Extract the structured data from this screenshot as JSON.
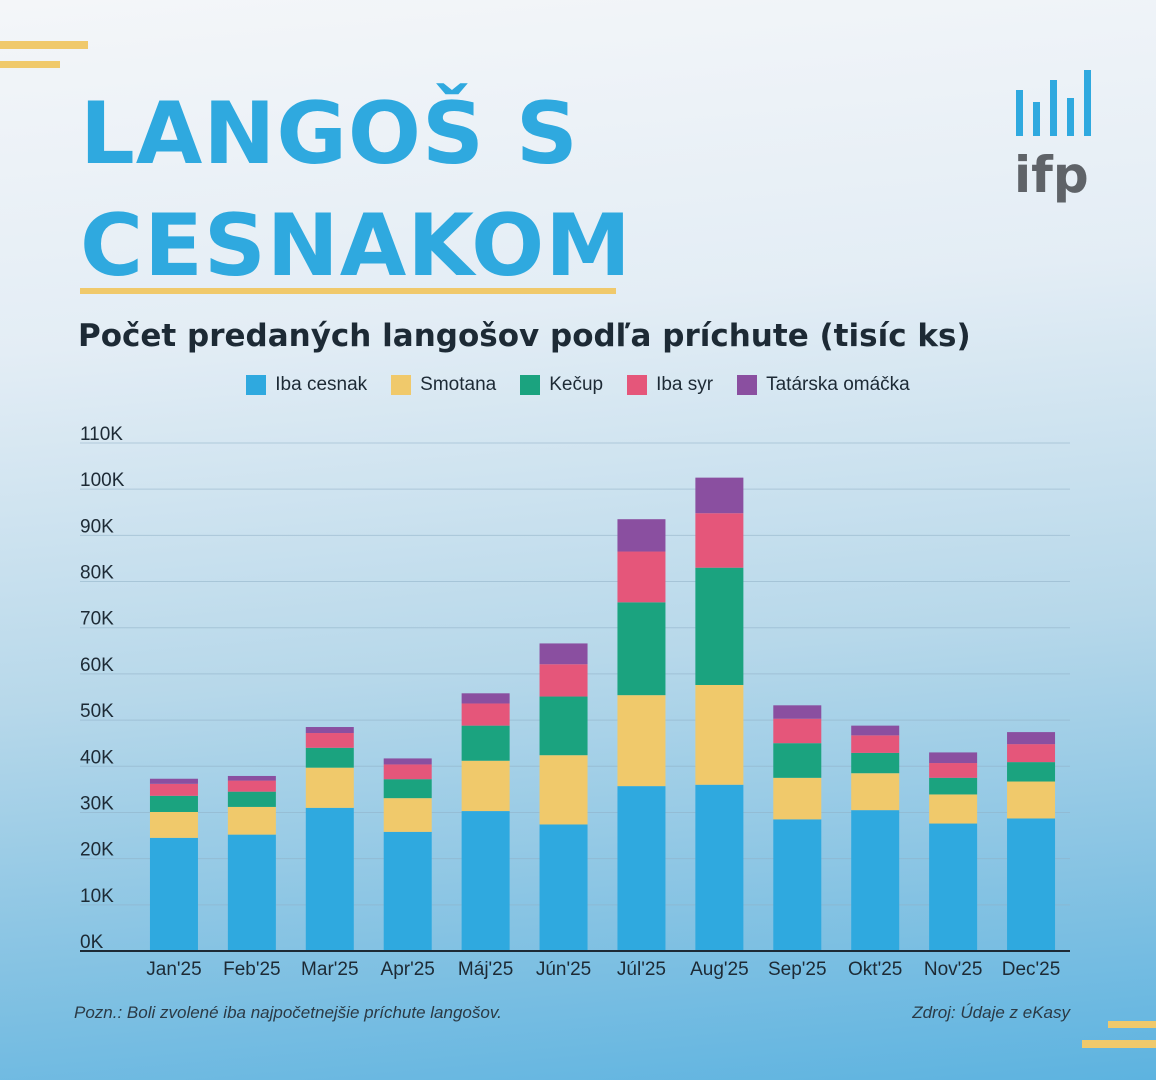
{
  "header": {
    "title_line1": "LANGOŠ S",
    "title_line2": "CESNAKOM",
    "logo_text": "ifp"
  },
  "colors": {
    "Iba cesnak": "#2fa9df",
    "Smotana": "#f0c96b",
    "Kečup": "#1ba37f",
    "Iba syr": "#e5567a",
    "Tatárska omáčka": "#8a4fa0",
    "accent": "#f0c96b",
    "title": "#2fa9df"
  },
  "chart_data": {
    "type": "bar",
    "stacked": true,
    "title": "Počet predaných langošov podľa príchute (tisíc ks)",
    "xlabel": "",
    "ylabel": "",
    "ylim": [
      0,
      110000
    ],
    "yticks": [
      0,
      10000,
      20000,
      30000,
      40000,
      50000,
      60000,
      70000,
      80000,
      90000,
      100000,
      110000
    ],
    "ytick_labels": [
      "0K",
      "10K",
      "20K",
      "30K",
      "40K",
      "50K",
      "60K",
      "70K",
      "80K",
      "90K",
      "100K",
      "110K"
    ],
    "grid": true,
    "legend_position": "top",
    "categories": [
      "Jan'25",
      "Feb'25",
      "Mar'25",
      "Apr'25",
      "Máj'25",
      "Jún'25",
      "Júl'25",
      "Aug'25",
      "Sep'25",
      "Okt'25",
      "Nov'25",
      "Dec'25"
    ],
    "series": [
      {
        "name": "Iba cesnak",
        "values": [
          24500,
          25200,
          31000,
          25800,
          30300,
          27400,
          35700,
          36000,
          28500,
          30500,
          27600,
          28700
        ]
      },
      {
        "name": "Smotana",
        "values": [
          5600,
          6000,
          8700,
          7300,
          10900,
          15000,
          19700,
          21600,
          9000,
          8000,
          6300,
          8000
        ]
      },
      {
        "name": "Kečup",
        "values": [
          3500,
          3300,
          4300,
          4100,
          7600,
          12700,
          20100,
          25400,
          7500,
          4400,
          3600,
          4200
        ]
      },
      {
        "name": "Iba syr",
        "values": [
          2600,
          2400,
          3200,
          3200,
          4800,
          7000,
          11000,
          11800,
          5300,
          3800,
          3200,
          3900
        ]
      },
      {
        "name": "Tatárska omáčka",
        "values": [
          1100,
          1000,
          1300,
          1300,
          2200,
          4500,
          7000,
          7700,
          2900,
          2100,
          2300,
          2600
        ]
      }
    ]
  },
  "footer": {
    "note": "Pozn.: Boli zvolené iba najpočetnejšie príchute langošov.",
    "source": "Zdroj: Údaje z eKasy"
  }
}
